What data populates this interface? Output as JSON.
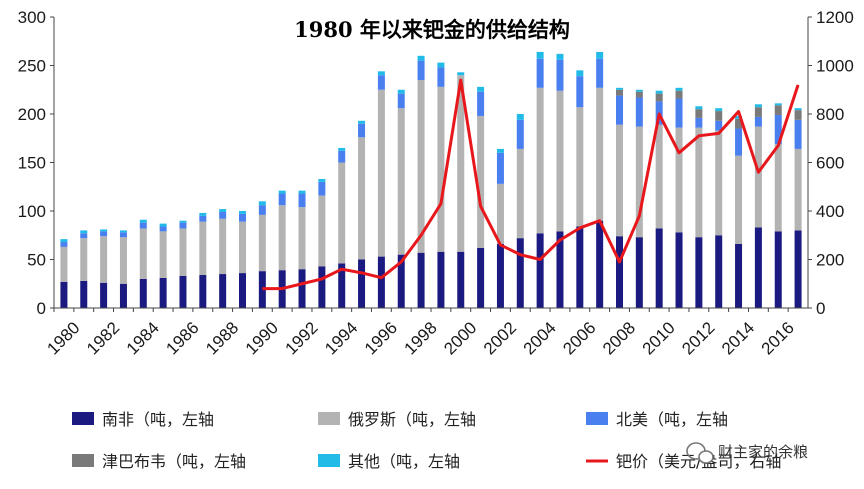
{
  "chart_data": {
    "type": "bar",
    "title": "1980 年以来钯金的供给结构",
    "x": [
      1980,
      1981,
      1982,
      1983,
      1984,
      1985,
      1986,
      1987,
      1988,
      1989,
      1990,
      1991,
      1992,
      1993,
      1994,
      1995,
      1996,
      1997,
      1998,
      1999,
      2000,
      2001,
      2002,
      2003,
      2004,
      2005,
      2006,
      2007,
      2008,
      2009,
      2010,
      2011,
      2012,
      2013,
      2014,
      2015,
      2016,
      2017
    ],
    "x_tick_labels": [
      "1980",
      "1982",
      "1984",
      "1986",
      "1988",
      "1990",
      "1992",
      "1994",
      "1996",
      "1998",
      "2000",
      "2002",
      "2004",
      "2006",
      "2008",
      "2010",
      "2012",
      "2014",
      "2016"
    ],
    "y_left_ticks": [
      "0",
      "50",
      "100",
      "150",
      "200",
      "250",
      "300"
    ],
    "y_right_ticks": [
      "0",
      "200",
      "400",
      "600",
      "800",
      "1000",
      "1200"
    ],
    "ylim_left": [
      0,
      300
    ],
    "ylim_right": [
      0,
      1200
    ],
    "stacked": true,
    "series": [
      {
        "name": "南非（吨，左轴",
        "color": "#1a1a80",
        "axis": "left",
        "values": [
          27,
          28,
          26,
          25,
          30,
          31,
          33,
          34,
          35,
          36,
          38,
          39,
          40,
          43,
          46,
          50,
          53,
          55,
          57,
          58,
          58,
          62,
          66,
          72,
          77,
          79,
          84,
          90,
          74,
          73,
          82,
          78,
          73,
          75,
          66,
          83,
          79,
          80
        ]
      },
      {
        "name": "俄罗斯（吨，左轴",
        "color": "#b3b3b3",
        "axis": "left",
        "values": [
          36,
          44,
          48,
          48,
          52,
          48,
          49,
          55,
          57,
          53,
          58,
          67,
          64,
          73,
          104,
          126,
          172,
          151,
          178,
          170,
          182,
          136,
          62,
          92,
          150,
          145,
          123,
          137,
          115,
          114,
          107,
          108,
          113,
          108,
          91,
          104,
          90,
          84
        ]
      },
      {
        "name": "北美（吨，左轴",
        "color": "#4a7ff0",
        "axis": "left",
        "values": [
          5,
          5,
          5,
          5,
          6,
          5,
          6,
          6,
          7,
          8,
          10,
          12,
          14,
          14,
          12,
          14,
          15,
          15,
          20,
          20,
          0,
          25,
          32,
          30,
          30,
          32,
          32,
          30,
          30,
          30,
          24,
          30,
          10,
          10,
          28,
          10,
          30,
          30
        ]
      },
      {
        "name": "津巴布韦（吨，左轴",
        "color": "#7a7a7a",
        "axis": "left",
        "values": [
          0,
          0,
          0,
          0,
          0,
          0,
          0,
          0,
          0,
          0,
          0,
          0,
          0,
          0,
          0,
          0,
          0,
          0,
          0,
          0,
          0,
          0,
          0,
          0,
          0,
          0,
          0,
          0,
          6,
          6,
          8,
          8,
          9,
          10,
          10,
          10,
          10,
          10
        ]
      },
      {
        "name": "其他（吨，左轴",
        "color": "#22bbe8",
        "axis": "left",
        "values": [
          3,
          3,
          2,
          2,
          3,
          3,
          2,
          3,
          3,
          3,
          4,
          3,
          3,
          3,
          3,
          3,
          4,
          4,
          5,
          5,
          3,
          5,
          4,
          6,
          7,
          6,
          6,
          7,
          2,
          2,
          3,
          3,
          3,
          3,
          3,
          3,
          2,
          2
        ]
      },
      {
        "name": "钯价（美元/盎司，右轴",
        "color": "#e8171c",
        "axis": "right",
        "type": "line",
        "x": [
          1990,
          1991,
          1992,
          1993,
          1994,
          1995,
          1996,
          1997,
          1998,
          1999,
          2000,
          2001,
          2002,
          2003,
          2004,
          2005,
          2006,
          2007,
          2008,
          2009,
          2010,
          2011,
          2012,
          2013,
          2014,
          2015,
          2016,
          2017
        ],
        "values": [
          80,
          80,
          100,
          120,
          160,
          145,
          125,
          190,
          300,
          430,
          940,
          420,
          260,
          220,
          200,
          280,
          330,
          360,
          190,
          380,
          800,
          640,
          710,
          720,
          810,
          560,
          670,
          920
        ]
      }
    ],
    "legend_position": "bottom",
    "grid": false
  },
  "watermark": {
    "text": "财主家的余粮"
  }
}
